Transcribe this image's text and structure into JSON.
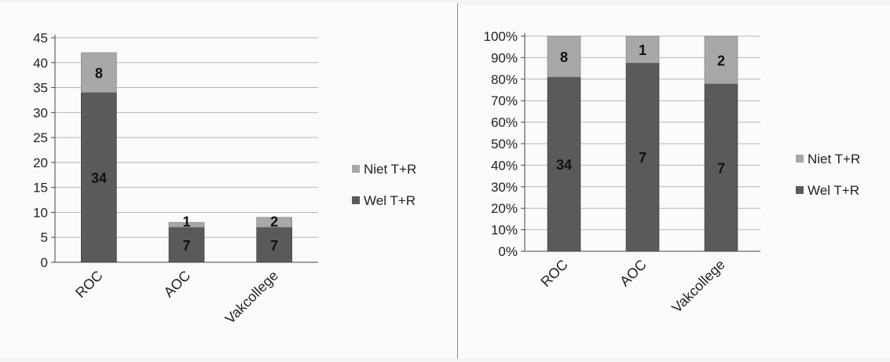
{
  "colors": {
    "wel": "#5a5a5a",
    "niet": "#a8a8a8",
    "grid": "#b5b5b5",
    "axis": "#444444"
  },
  "chart_data": [
    {
      "type": "bar",
      "stacked": true,
      "categories": [
        "ROC",
        "AOC",
        "Vakcollege"
      ],
      "series": [
        {
          "name": "Wel T+R",
          "values": [
            34,
            7,
            7
          ],
          "color": "#5a5a5a"
        },
        {
          "name": "Niet T+R",
          "values": [
            8,
            1,
            2
          ],
          "color": "#a8a8a8"
        }
      ],
      "ylim": [
        0,
        45
      ],
      "yticks": [
        "0",
        "5",
        "10",
        "15",
        "20",
        "25",
        "30",
        "35",
        "40",
        "45"
      ],
      "grid": true,
      "legend": {
        "position": "right",
        "items": [
          "Niet T+R",
          "Wel T+R"
        ]
      }
    },
    {
      "type": "bar",
      "stacked": true,
      "percent": true,
      "categories": [
        "ROC",
        "AOC",
        "Vakcollege"
      ],
      "series": [
        {
          "name": "Wel T+R",
          "values": [
            34,
            7,
            7
          ],
          "color": "#5a5a5a"
        },
        {
          "name": "Niet T+R",
          "values": [
            8,
            1,
            2
          ],
          "color": "#a8a8a8"
        }
      ],
      "ylim": [
        0,
        100
      ],
      "yticks": [
        "0%",
        "10%",
        "20%",
        "30%",
        "40%",
        "50%",
        "60%",
        "70%",
        "80%",
        "90%",
        "100%"
      ],
      "grid": true,
      "legend": {
        "position": "right",
        "items": [
          "Niet T+R",
          "Wel T+R"
        ]
      }
    }
  ]
}
